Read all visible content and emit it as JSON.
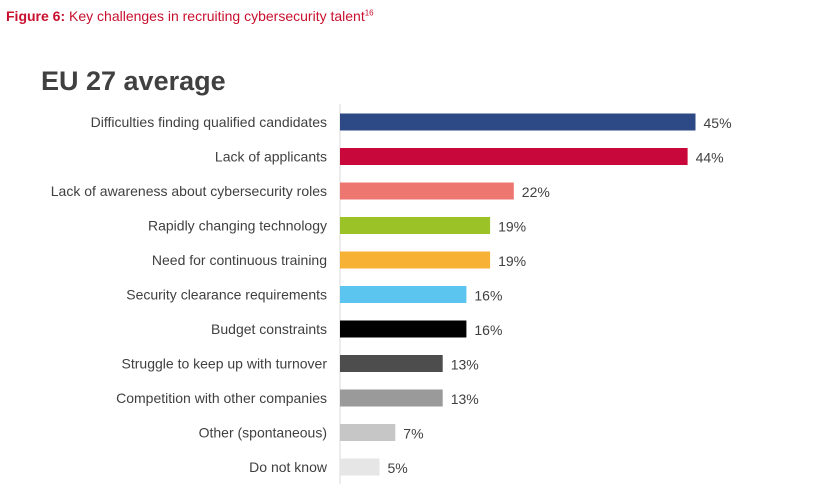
{
  "figure": {
    "number_label": "Figure 6:",
    "caption": "Key challenges in recruiting cybersecurity talent",
    "footnote_ref": "16",
    "caption_color": "#c8102e"
  },
  "chart_data": {
    "type": "bar",
    "orientation": "horizontal",
    "title": "EU 27 average",
    "xlabel": "",
    "ylabel": "",
    "xlim": [
      0,
      50
    ],
    "value_suffix": "%",
    "grid": false,
    "categories": [
      "Difficulties finding qualified candidates",
      "Lack of applicants",
      "Lack of awareness about cybersecurity roles",
      "Rapidly changing technology",
      "Need for continuous training",
      "Security clearance requirements",
      "Budget constraints",
      "Struggle to keep up with turnover",
      "Competition with other companies",
      "Other (spontaneous)",
      "Do not know"
    ],
    "values": [
      45,
      44,
      22,
      19,
      19,
      16,
      16,
      13,
      13,
      7,
      5
    ],
    "colors": [
      "#2e4a86",
      "#c8083a",
      "#ee7670",
      "#9bc226",
      "#f7b236",
      "#5bc4ef",
      "#000000",
      "#4d4d4d",
      "#9a9a9a",
      "#c6c6c6",
      "#e6e6e6"
    ]
  }
}
